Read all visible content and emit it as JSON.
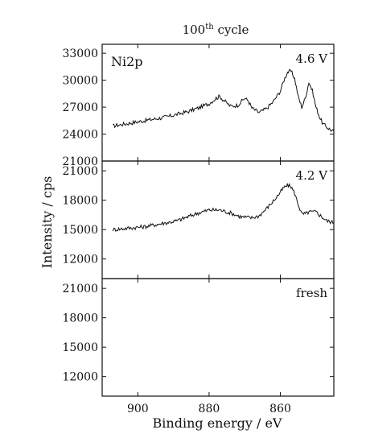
{
  "chart_data": {
    "type": "line",
    "title": "100",
    "title_superscript": "th",
    "title_suffix": " cycle",
    "xlabel": "Binding energy / eV",
    "ylabel": "Intensity / cps",
    "xlim": [
      910,
      845
    ],
    "x_ticks": [
      900,
      880,
      860
    ],
    "element_label": "Ni2p",
    "panels": [
      {
        "label": "4.6 V",
        "ylim": [
          21000,
          34000
        ],
        "y_ticks": [
          21000,
          24000,
          27000,
          30000,
          33000
        ],
        "series": [
          {
            "x": [
              907,
              904,
              901,
              898,
              895,
              892,
              889,
              886,
              883,
              880,
              878,
              877,
              876,
              874,
              872,
              870,
              869,
              868,
              866,
              864,
              862,
              860,
              859,
              858,
              857,
              856,
              855,
              854,
              853,
              852,
              851,
              850,
              849,
              848,
              847,
              846,
              845
            ],
            "y": [
              24900,
              25100,
              25300,
              25500,
              25700,
              25900,
              26200,
              26500,
              26900,
              27400,
              28000,
              28200,
              27800,
              27100,
              27200,
              28000,
              27700,
              26900,
              26400,
              26800,
              27600,
              28800,
              30000,
              30900,
              31000,
              30200,
              28200,
              27000,
              28000,
              29800,
              28800,
              27000,
              25900,
              25100,
              24800,
              24500,
              24300
            ]
          }
        ]
      },
      {
        "label": "4.2 V",
        "ylim": [
          10000,
          22000
        ],
        "y_ticks": [
          12000,
          15000,
          18000,
          21000
        ],
        "series": [
          {
            "x": [
              907,
              904,
              901,
              898,
              895,
              892,
              889,
              886,
              883,
              880,
              877,
              874,
              871,
              868,
              866,
              864,
              862,
              860,
              859,
              858,
              857,
              856,
              855,
              854,
              853,
              852,
              850,
              849,
              848,
              847,
              846,
              845
            ],
            "y": [
              15000,
              15100,
              15200,
              15300,
              15500,
              15700,
              15900,
              16300,
              16700,
              17000,
              17000,
              16700,
              16300,
              16200,
              16400,
              17100,
              17900,
              18800,
              19300,
              19500,
              19400,
              18700,
              17600,
              16600,
              16600,
              16800,
              16800,
              16500,
              16200,
              15900,
              15800,
              15700
            ]
          }
        ]
      },
      {
        "label": "fresh",
        "ylim": [
          10000,
          22000
        ],
        "y_ticks": [
          12000,
          15000,
          18000,
          21000
        ],
        "series": []
      }
    ]
  }
}
